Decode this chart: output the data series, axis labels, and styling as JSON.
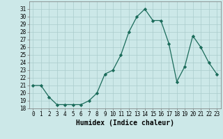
{
  "x": [
    0,
    1,
    2,
    3,
    4,
    5,
    6,
    7,
    8,
    9,
    10,
    11,
    12,
    13,
    14,
    15,
    16,
    17,
    18,
    19,
    20,
    21,
    22,
    23
  ],
  "y": [
    21.0,
    21.0,
    19.5,
    18.5,
    18.5,
    18.5,
    18.5,
    19.0,
    20.0,
    22.5,
    23.0,
    25.0,
    28.0,
    30.0,
    31.0,
    29.5,
    29.5,
    26.5,
    21.5,
    23.5,
    27.5,
    26.0,
    24.0,
    22.5
  ],
  "xlabel": "Humidex (Indice chaleur)",
  "ylim": [
    18,
    32
  ],
  "xlim_min": -0.5,
  "xlim_max": 23.5,
  "yticks": [
    18,
    19,
    20,
    21,
    22,
    23,
    24,
    25,
    26,
    27,
    28,
    29,
    30,
    31
  ],
  "xticks": [
    0,
    1,
    2,
    3,
    4,
    5,
    6,
    7,
    8,
    9,
    10,
    11,
    12,
    13,
    14,
    15,
    16,
    17,
    18,
    19,
    20,
    21,
    22,
    23
  ],
  "line_color": "#1a6b5a",
  "marker": "D",
  "marker_size": 2.2,
  "bg_color": "#cce8e8",
  "grid_color": "#aacccc",
  "tick_fontsize": 5.5,
  "xlabel_fontsize": 7.0,
  "linewidth": 0.9
}
